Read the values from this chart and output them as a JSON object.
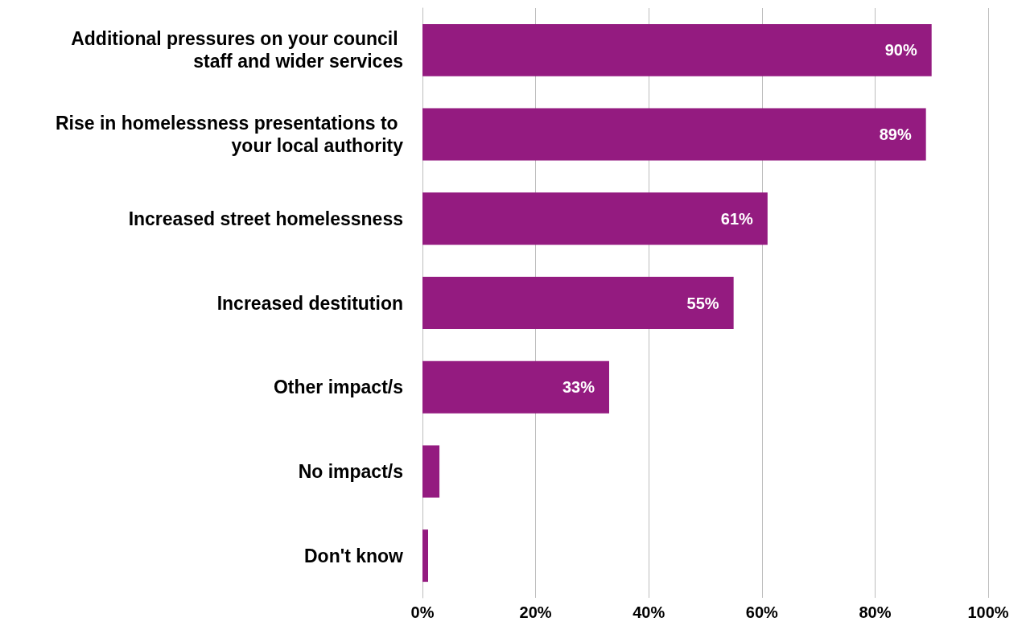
{
  "chart_data": {
    "type": "bar",
    "orientation": "horizontal",
    "categories": [
      "Additional pressures on your council staff and wider services",
      "Rise in homelessness presentations to your local authority",
      "Increased street homelessness",
      "Increased destitution",
      "Other impact/s",
      "No impact/s",
      "Don't know"
    ],
    "values": [
      90,
      89,
      61,
      55,
      33,
      3,
      1
    ],
    "value_labels": [
      "90%",
      "89%",
      "61%",
      "55%",
      "33%",
      null,
      null
    ],
    "color": "#941b80",
    "xlim": [
      0,
      100
    ],
    "xticks": [
      {
        "value": 0,
        "label": "0%"
      },
      {
        "value": 20,
        "label": "20%"
      },
      {
        "value": 40,
        "label": "40%"
      },
      {
        "value": 60,
        "label": "60%"
      },
      {
        "value": 80,
        "label": "80%"
      },
      {
        "value": 100,
        "label": "100%"
      }
    ],
    "grid": "x"
  }
}
